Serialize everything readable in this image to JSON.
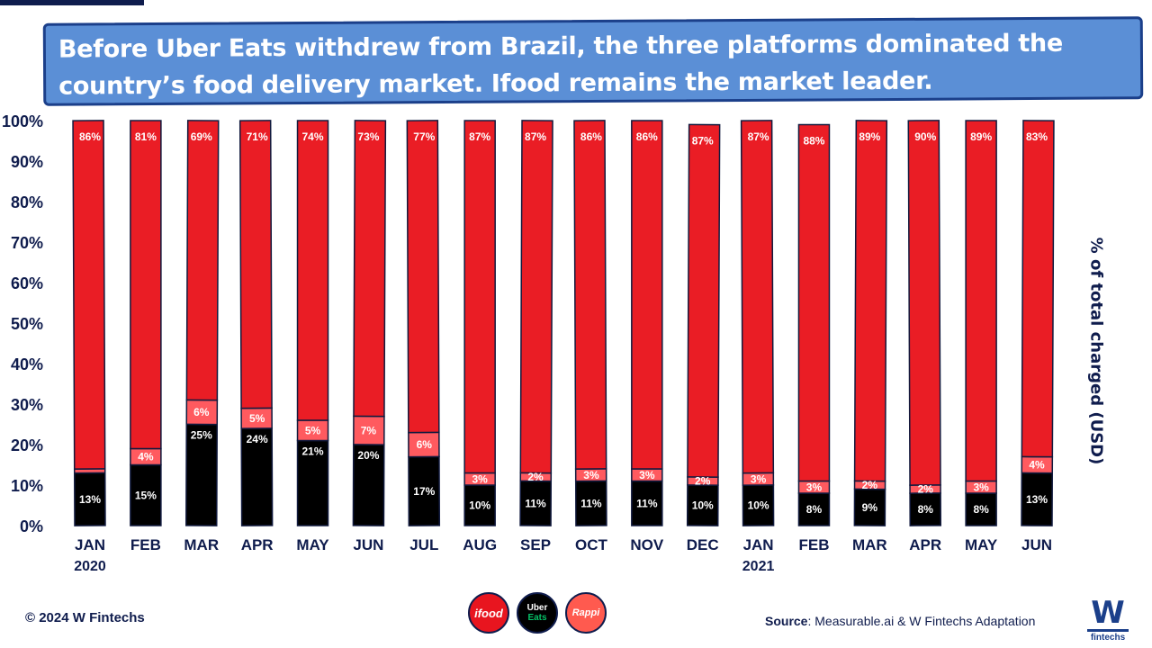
{
  "title": "Before Uber Eats withdrew from Brazil, the three platforms dominated the country’s food delivery market. Ifood remains the market leader.",
  "chart_data": {
    "type": "bar",
    "stacked": true,
    "title": "Before Uber Eats withdrew from Brazil, the three platforms dominated the country’s food delivery market. Ifood remains the market leader.",
    "ylabel": "% of total charged (USD)",
    "ylim": [
      0,
      100
    ],
    "yticks": [
      "0%",
      "10%",
      "20%",
      "30%",
      "40%",
      "50%",
      "60%",
      "70%",
      "80%",
      "90%",
      "100%"
    ],
    "categories": [
      {
        "month": "JAN",
        "year": "2020"
      },
      {
        "month": "FEB",
        "year": ""
      },
      {
        "month": "MAR",
        "year": ""
      },
      {
        "month": "APR",
        "year": ""
      },
      {
        "month": "MAY",
        "year": ""
      },
      {
        "month": "JUN",
        "year": ""
      },
      {
        "month": "JUL",
        "year": ""
      },
      {
        "month": "AUG",
        "year": ""
      },
      {
        "month": "SEP",
        "year": ""
      },
      {
        "month": "OCT",
        "year": ""
      },
      {
        "month": "NOV",
        "year": ""
      },
      {
        "month": "DEC",
        "year": ""
      },
      {
        "month": "JAN",
        "year": "2021"
      },
      {
        "month": "FEB",
        "year": ""
      },
      {
        "month": "MAR",
        "year": ""
      },
      {
        "month": "APR",
        "year": ""
      },
      {
        "month": "MAY",
        "year": ""
      },
      {
        "month": "JUN",
        "year": ""
      }
    ],
    "series": [
      {
        "key": "uber-eats",
        "color": "#000000",
        "label_color": "#ffffff",
        "values": [
          13,
          15,
          25,
          24,
          21,
          20,
          17,
          10,
          11,
          11,
          11,
          10,
          10,
          8,
          9,
          8,
          8,
          13
        ]
      },
      {
        "key": "rappi",
        "color": "#ff5a5f",
        "label_color": "#ffffff",
        "values": [
          null,
          4,
          6,
          5,
          5,
          7,
          6,
          3,
          2,
          3,
          3,
          2,
          3,
          3,
          2,
          2,
          3,
          4
        ]
      },
      {
        "key": "ifood",
        "color": "#ea1d25",
        "label_color": "#ffffff",
        "values": [
          86,
          81,
          69,
          71,
          74,
          73,
          77,
          87,
          87,
          86,
          86,
          87,
          87,
          88,
          89,
          90,
          89,
          83
        ]
      }
    ],
    "segment_heights": {
      "uber-eats": [
        13,
        15,
        25,
        24,
        21,
        20,
        17,
        10,
        11,
        11,
        11,
        10,
        10,
        8,
        9,
        8,
        8,
        13
      ],
      "rappi": [
        1,
        4,
        6,
        5,
        5,
        7,
        6,
        3,
        2,
        3,
        3,
        2,
        3,
        3,
        2,
        2,
        3,
        4
      ]
    },
    "colors": {
      "axis_text": "#0f1c4d",
      "outline": "#111a3e"
    }
  },
  "footer": {
    "copyright": "© 2024 W Fintechs",
    "source_label": "Source",
    "source_text": ": Measurable.ai  & W Fintechs Adaptation"
  },
  "logos": [
    {
      "name": "ifood",
      "text": "ifood"
    },
    {
      "name": "uber-eats",
      "text_top": "Uber",
      "text_bottom": "Eats"
    },
    {
      "name": "rappi",
      "text": "Rappi"
    }
  ],
  "brand": {
    "letter": "W",
    "name": "fintechs"
  }
}
